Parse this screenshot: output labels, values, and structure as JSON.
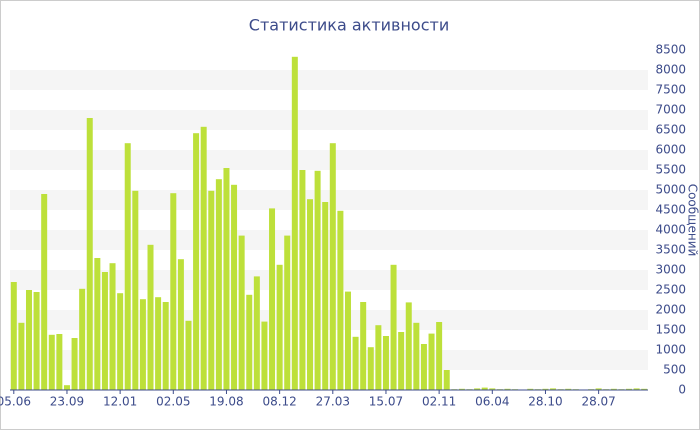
{
  "chart_data": {
    "type": "bar",
    "title": "Статистика активности",
    "y_label": "Сообщений",
    "categories": [
      "05.06",
      null,
      null,
      null,
      null,
      null,
      null,
      "23.09",
      null,
      null,
      null,
      null,
      null,
      null,
      "12.01",
      null,
      null,
      null,
      null,
      null,
      null,
      "02.05",
      null,
      null,
      null,
      null,
      null,
      null,
      "19.08",
      null,
      null,
      null,
      null,
      null,
      null,
      "08.12",
      null,
      null,
      null,
      null,
      null,
      null,
      "27.03",
      null,
      null,
      null,
      null,
      null,
      null,
      "15.07",
      null,
      null,
      null,
      null,
      null,
      null,
      "02.11",
      null,
      null,
      null,
      null,
      null,
      null,
      "06.04",
      null,
      null,
      null,
      null,
      null,
      null,
      "28.10",
      null,
      null,
      null,
      null,
      null,
      null,
      "28.07",
      null,
      null,
      null,
      null,
      null,
      null
    ],
    "values": [
      2700,
      1680,
      2500,
      2450,
      4900,
      1380,
      1400,
      120,
      1300,
      2530,
      6800,
      3300,
      2950,
      3170,
      2420,
      6170,
      4980,
      2270,
      3630,
      2320,
      2200,
      4920,
      3270,
      1730,
      6420,
      6580,
      4980,
      5270,
      5550,
      5130,
      3860,
      2380,
      2840,
      1710,
      4540,
      3130,
      3860,
      8330,
      5500,
      4770,
      5480,
      4700,
      6170,
      4480,
      2460,
      1330,
      2200,
      1070,
      1620,
      1350,
      3130,
      1450,
      2190,
      1680,
      1150,
      1410,
      1700,
      500,
      20,
      30,
      20,
      40,
      60,
      40,
      20,
      30,
      20,
      10,
      30,
      20,
      30,
      40,
      20,
      30,
      20,
      10,
      20,
      40,
      20,
      30,
      20,
      30,
      40,
      30
    ],
    "color": "#bde03a",
    "ylim": [
      0,
      8500
    ],
    "yticks": [
      0,
      500,
      1000,
      1500,
      2000,
      2500,
      3000,
      3500,
      4000,
      4500,
      5000,
      5500,
      6000,
      6500,
      7000,
      7500,
      8000,
      8500
    ],
    "grid": true
  }
}
